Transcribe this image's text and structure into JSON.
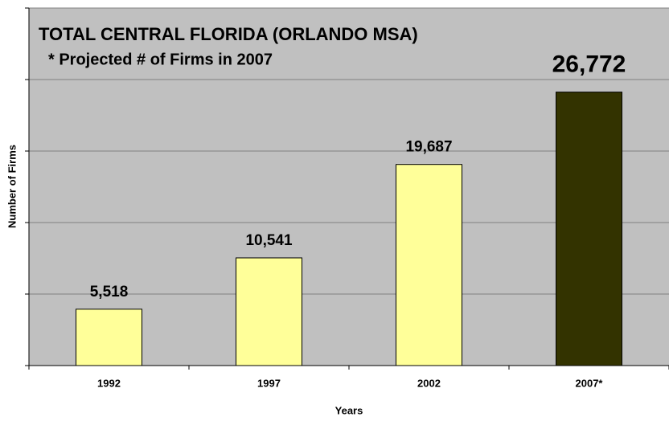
{
  "chart_data": {
    "type": "bar",
    "title": "TOTAL CENTRAL FLORIDA (ORLANDO MSA)",
    "subtitle": "* Projected # of Firms in 2007",
    "x_label": "Years",
    "y_label": "Number of Firms",
    "categories": [
      "1992",
      "1997",
      "2002",
      "2007*"
    ],
    "values": [
      5518,
      10541,
      19687,
      26772
    ],
    "value_labels": [
      "5,518",
      "10,541",
      "19,687",
      "26,772"
    ],
    "colors": [
      "#ffff99",
      "#ffff99",
      "#ffff99",
      "#333300"
    ],
    "ylim": [
      0,
      35000
    ],
    "yticks": [
      0,
      7000,
      14000,
      21000,
      28000,
      35000
    ],
    "grid": true,
    "plot_background": "#c0c0c0"
  }
}
